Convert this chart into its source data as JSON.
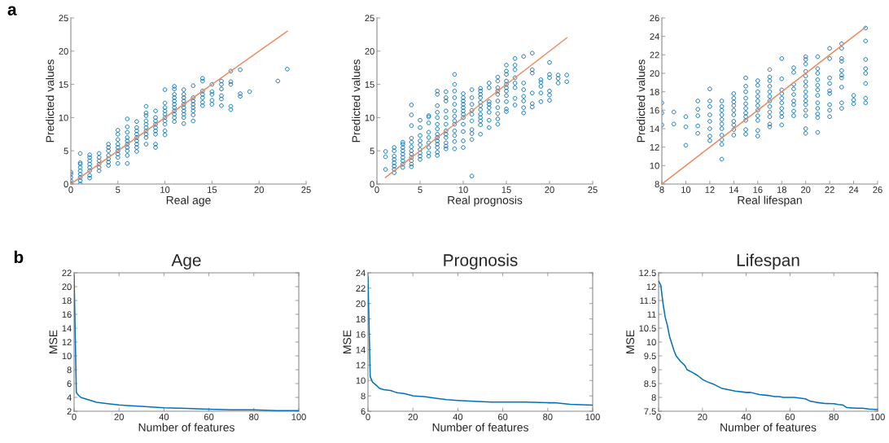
{
  "chart_data": [
    {
      "type": "scatter",
      "annotations": [
        "a"
      ],
      "xlabel": "Real age",
      "ylabel": "Predicted values",
      "xlim": [
        0,
        25
      ],
      "ylim": [
        0,
        25
      ],
      "xticks": [
        0,
        5,
        10,
        15,
        20,
        25
      ],
      "yticks": [
        0,
        5,
        10,
        15,
        20,
        25
      ],
      "series": [
        {
          "type": "scatter",
          "marker": "circle",
          "color": "#0072bd",
          "x": [
            0,
            0,
            0,
            0,
            0,
            1,
            1,
            1,
            1,
            1,
            1,
            1,
            1,
            1,
            2,
            2,
            2,
            2,
            2,
            2,
            2,
            2,
            3,
            3,
            3,
            3,
            3,
            3,
            4,
            4,
            4,
            4,
            4,
            4,
            4,
            5,
            5,
            5,
            5,
            5,
            5,
            5,
            5,
            5,
            6,
            6,
            6,
            6,
            6,
            6,
            6,
            6,
            6,
            6,
            7,
            7,
            7,
            7,
            7,
            7,
            7,
            7,
            7,
            8,
            8,
            8,
            8,
            8,
            8,
            8,
            8,
            8,
            8,
            9,
            9,
            9,
            9,
            9,
            9,
            9,
            9,
            9,
            10,
            10,
            10,
            10,
            10,
            10,
            10,
            10,
            10,
            10,
            11,
            11,
            11,
            11,
            11,
            11,
            11,
            11,
            11,
            11,
            11,
            12,
            12,
            12,
            12,
            12,
            12,
            12,
            12,
            12,
            12,
            13,
            13,
            13,
            13,
            13,
            13,
            13,
            13,
            14,
            14,
            14,
            14,
            14,
            14,
            14,
            15,
            15,
            15,
            15,
            15,
            16,
            16,
            16,
            16,
            16,
            16,
            17,
            17,
            17,
            17,
            17,
            18,
            18,
            18,
            19,
            22,
            23
          ],
          "values": [
            0,
            0.5,
            1,
            1.5,
            1.8,
            0,
            0.5,
            1,
            1.5,
            2,
            2.5,
            3,
            3.2,
            4.6,
            0.9,
            1.3,
            2,
            2.5,
            3,
            3.5,
            4,
            4.4,
            2,
            2.5,
            3,
            3.5,
            4,
            4.6,
            2.8,
            3.3,
            3.8,
            4.3,
            5,
            5.5,
            6,
            3.1,
            4,
            4.5,
            5,
            5.5,
            6,
            6.7,
            7.5,
            8.1,
            3.1,
            4.3,
            5,
            5.5,
            6,
            6.5,
            7,
            7.8,
            8.6,
            9.8,
            4.9,
            5.5,
            6,
            6.5,
            7,
            7.5,
            8,
            8.5,
            9.4,
            6,
            7,
            7.5,
            8,
            8.5,
            9,
            9.5,
            10.3,
            10.7,
            11.7,
            5.5,
            6,
            7.5,
            8,
            8.5,
            9,
            9.5,
            10,
            11,
            7.4,
            8,
            9,
            9.5,
            10,
            10.5,
            11,
            11.5,
            12.2,
            14.2,
            9.4,
            10,
            10.5,
            11,
            11.5,
            12,
            12.5,
            13,
            13.5,
            14.3,
            14.7,
            9.1,
            10,
            10.5,
            11,
            11.5,
            12,
            12.5,
            13,
            13.5,
            14.2,
            9.5,
            10.4,
            11,
            11.5,
            12,
            12.5,
            13,
            14.8,
            11.8,
            12.3,
            13,
            13.5,
            14,
            15.5,
            15.9,
            12,
            12.6,
            13.5,
            13.9,
            15,
            11.8,
            12.8,
            13.3,
            14.3,
            15,
            15.5,
            11.2,
            11.7,
            15,
            15.4,
            17,
            13.2,
            13.6,
            17.2,
            13.9,
            15.5,
            17.3
          ]
        },
        {
          "type": "line",
          "color": "#ec8a62",
          "x": [
            0,
            23
          ],
          "values": [
            0,
            23
          ]
        }
      ]
    },
    {
      "type": "scatter",
      "xlabel": "Real prognosis",
      "ylabel": "Predicted values",
      "xlim": [
        0,
        25
      ],
      "ylim": [
        0,
        25
      ],
      "xticks": [
        0,
        5,
        10,
        15,
        20,
        25
      ],
      "yticks": [
        0,
        5,
        10,
        15,
        20,
        25
      ],
      "series": [
        {
          "type": "scatter",
          "marker": "circle",
          "color": "#0072bd",
          "x": [
            1,
            1,
            1,
            2,
            2,
            2,
            2,
            2,
            2,
            2,
            2,
            3,
            3,
            3,
            3,
            3,
            3,
            3,
            3,
            3,
            4,
            4,
            4,
            4,
            4,
            4,
            4,
            4,
            4,
            4,
            4,
            4,
            5,
            5,
            5,
            5,
            5,
            5,
            5,
            5,
            5,
            6,
            6,
            6,
            6,
            6,
            6,
            6,
            6,
            6,
            7,
            7,
            7,
            7,
            7,
            7,
            7,
            7,
            7,
            7,
            7,
            7,
            7,
            7,
            8,
            8,
            8,
            8,
            8,
            8,
            8,
            8,
            8,
            8,
            8,
            8,
            9,
            9,
            9,
            9,
            9,
            9,
            9,
            9,
            9,
            9,
            9,
            9,
            9,
            10,
            10,
            10,
            10,
            10,
            10,
            10,
            10,
            10,
            10,
            10,
            10,
            11,
            11,
            11,
            11,
            11,
            11,
            11,
            11,
            11,
            11,
            12,
            12,
            12,
            12,
            12,
            12,
            12,
            12,
            12,
            12,
            12,
            12,
            13,
            13,
            13,
            13,
            13,
            13,
            13,
            13,
            14,
            14,
            14,
            14,
            14,
            14,
            14,
            14,
            14,
            14,
            15,
            15,
            15,
            15,
            15,
            15,
            15,
            15,
            15,
            15,
            15,
            16,
            16,
            16,
            16,
            16,
            16,
            16,
            16,
            17,
            17,
            17,
            17,
            17,
            17,
            17,
            18,
            18,
            18,
            18,
            18,
            18,
            19,
            19,
            19,
            19,
            19,
            20,
            20,
            20,
            20,
            20,
            20,
            21,
            21,
            21,
            22,
            22
          ],
          "values": [
            2.2,
            4.1,
            4.9,
            1.7,
            2.2,
            2.7,
            3.2,
            3.7,
            4.2,
            5,
            5.5,
            2.5,
            3,
            3.5,
            4,
            4.5,
            5,
            5.5,
            6,
            6.3,
            2.6,
            3,
            3.5,
            4,
            4.5,
            5,
            5.6,
            6.3,
            6.9,
            8.8,
            10.4,
            11.9,
            3.7,
            4.2,
            4.7,
            5.2,
            5.9,
            6.5,
            7.3,
            8.5,
            9.6,
            4.2,
            4.7,
            5.5,
            6.2,
            7,
            7.8,
            9.2,
            10.1,
            10.3,
            4.3,
            4.8,
            5.5,
            6,
            6.5,
            7,
            7.5,
            8.3,
            9,
            10,
            10.8,
            11.8,
            13.5,
            14,
            5.3,
            5.7,
            6.2,
            7,
            7.5,
            8,
            9,
            10,
            11,
            12.5,
            13,
            13.9,
            5.3,
            6.4,
            7.3,
            8,
            9,
            9.5,
            10.2,
            11,
            12,
            13,
            14,
            15,
            16.5,
            5.5,
            6.5,
            7.9,
            9,
            10,
            10.5,
            11,
            11.5,
            12,
            12.5,
            13,
            13.6,
            1.2,
            6.7,
            7.6,
            8.2,
            9.5,
            10.5,
            11.1,
            12,
            13,
            14.2,
            7.5,
            8.9,
            9.5,
            10,
            10.5,
            11.2,
            11.8,
            12.3,
            13,
            13.5,
            14,
            14.4,
            8.5,
            9.6,
            10.8,
            11.5,
            12,
            12.4,
            14.5,
            15.2,
            9,
            9.8,
            10.6,
            11.5,
            12.5,
            13.5,
            14,
            14.5,
            15.5,
            16.1,
            10.9,
            11.3,
            12.4,
            13.3,
            14,
            14.5,
            15,
            15.5,
            16.5,
            17,
            17.9,
            11.9,
            12.9,
            14.5,
            15.2,
            16,
            17.2,
            17.9,
            18.9,
            10.7,
            11.5,
            12.5,
            13.2,
            14.2,
            15.2,
            19.2,
            11.6,
            12.1,
            13.7,
            16.7,
            17.2,
            19.7,
            12.4,
            13.7,
            14.7,
            15.3,
            15.7,
            12.6,
            13.4,
            14,
            16,
            16.5,
            18.3,
            15.2,
            15.9,
            16.4,
            15.4,
            16.4
          ]
        },
        {
          "type": "line",
          "color": "#ec8a62",
          "x": [
            1,
            22
          ],
          "values": [
            1,
            22
          ]
        }
      ]
    },
    {
      "type": "scatter",
      "xlabel": "Real lifespan",
      "ylabel": "Predicted values",
      "xlim": [
        8,
        26
      ],
      "ylim": [
        8,
        26
      ],
      "xticks": [
        8,
        10,
        12,
        14,
        16,
        18,
        20,
        22,
        24,
        26
      ],
      "yticks": [
        8,
        10,
        12,
        14,
        16,
        18,
        20,
        22,
        24,
        26
      ],
      "series": [
        {
          "type": "scatter",
          "marker": "circle",
          "color": "#0072bd",
          "x": [
            8,
            8,
            8,
            9,
            9,
            10,
            10,
            10,
            11,
            11,
            11,
            11,
            11,
            12,
            12,
            12,
            12,
            12,
            12,
            12,
            12,
            13,
            13,
            13,
            13,
            13,
            13,
            13,
            13,
            13,
            13,
            13,
            14,
            14,
            14,
            14,
            14,
            14,
            14,
            14,
            14,
            14,
            15,
            15,
            15,
            15,
            15,
            15,
            15,
            15,
            15,
            15,
            15,
            16,
            16,
            16,
            16,
            16,
            16,
            16,
            16,
            16,
            16,
            16,
            17,
            17,
            17,
            17,
            17,
            17,
            17,
            17,
            17,
            17,
            17,
            17,
            18,
            18,
            18,
            18,
            18,
            18,
            18,
            18,
            18,
            18,
            19,
            19,
            19,
            19,
            19,
            19,
            19,
            19,
            19,
            20,
            20,
            20,
            20,
            20,
            20,
            20,
            20,
            20,
            20,
            20,
            20,
            20,
            20,
            20,
            21,
            21,
            21,
            21,
            21,
            21,
            21,
            21,
            21,
            21,
            21,
            21,
            22,
            22,
            22,
            22,
            22,
            22,
            22,
            22,
            22,
            23,
            23,
            23,
            23,
            23,
            23,
            23,
            23,
            23,
            23,
            24,
            24,
            24,
            25,
            25,
            25,
            25,
            25,
            25,
            25,
            25
          ],
          "values": [
            14.4,
            15.7,
            16.8,
            14.5,
            15.8,
            12.2,
            14.2,
            15.3,
            13.5,
            14.3,
            15.4,
            16.1,
            17,
            12.7,
            13.2,
            14,
            14.8,
            15.5,
            16.4,
            17,
            18.3,
            10.7,
            12.3,
            12.8,
            13.3,
            14,
            14.5,
            15,
            15.5,
            16,
            16.4,
            17,
            13.3,
            13.9,
            14.4,
            14.8,
            15.5,
            16,
            16.5,
            16.9,
            17.3,
            17.8,
            13.4,
            13.9,
            14.9,
            15.3,
            15.7,
            16.2,
            16.7,
            17.3,
            18,
            18.6,
            19.5,
            13.2,
            13.8,
            14.9,
            15.4,
            16,
            16.5,
            17,
            17.5,
            18,
            18.7,
            19.2,
            14.2,
            14.5,
            15.3,
            15.8,
            16.4,
            17,
            17.5,
            18,
            18.6,
            19.2,
            19.6,
            20.4,
            14.4,
            15.3,
            15.7,
            16.2,
            16.8,
            17.3,
            17.8,
            18.2,
            19.4,
            21.6,
            15.4,
            15.9,
            16.6,
            17,
            17.7,
            18.3,
            18.8,
            20.1,
            20.6,
            13.5,
            14,
            15.4,
            16,
            16.6,
            17,
            17.5,
            18,
            18.6,
            19.1,
            19.7,
            20.2,
            21,
            21.5,
            21.8,
            13.6,
            15.2,
            15.6,
            16.2,
            16.8,
            17.6,
            18.2,
            18.7,
            19.3,
            20,
            20.5,
            21.8,
            15.3,
            16,
            16.6,
            17.8,
            18.1,
            18.9,
            19.5,
            21.6,
            22.7,
            16.2,
            16.8,
            18.5,
            19.5,
            19.8,
            20.3,
            21.3,
            21.6,
            22.7,
            23.2,
            16.7,
            17.1,
            17.6,
            16.8,
            17.3,
            18.9,
            20,
            20.5,
            21.5,
            23.5,
            24.9
          ]
        },
        {
          "type": "line",
          "color": "#ec8a62",
          "x": [
            8,
            25
          ],
          "values": [
            8,
            25
          ]
        }
      ]
    },
    {
      "type": "line",
      "title": "Age",
      "annotations": [
        "b"
      ],
      "xlabel": "Number of features",
      "ylabel": "MSE",
      "xlim": [
        0,
        100
      ],
      "ylim": [
        2,
        22
      ],
      "xticks": [
        0,
        20,
        40,
        60,
        80,
        100
      ],
      "yticks": [
        2,
        4,
        6,
        8,
        10,
        12,
        14,
        16,
        18,
        20,
        22
      ],
      "series": [
        {
          "color": "#0072bd",
          "x": [
            0,
            1,
            2,
            3,
            5,
            8,
            10,
            15,
            20,
            25,
            30,
            40,
            50,
            60,
            70,
            80,
            90,
            100
          ],
          "values": [
            21.6,
            4.7,
            4.3,
            4.0,
            3.8,
            3.5,
            3.3,
            3.1,
            2.9,
            2.8,
            2.7,
            2.5,
            2.4,
            2.3,
            2.2,
            2.2,
            2.1,
            2.1
          ]
        }
      ]
    },
    {
      "type": "line",
      "title": "Prognosis",
      "xlabel": "Number of features",
      "ylabel": "MSE",
      "xlim": [
        0,
        100
      ],
      "ylim": [
        6,
        24
      ],
      "xticks": [
        0,
        20,
        40,
        60,
        80,
        100
      ],
      "yticks": [
        6,
        8,
        10,
        12,
        14,
        16,
        18,
        20,
        22,
        24
      ],
      "series": [
        {
          "color": "#0072bd",
          "x": [
            0,
            1,
            2,
            4,
            5,
            7,
            10,
            12,
            13,
            16,
            20,
            25,
            30,
            35,
            40,
            47,
            55,
            60,
            70,
            80,
            83,
            90,
            100
          ],
          "values": [
            23.5,
            10.5,
            9.8,
            9.3,
            9.0,
            8.8,
            8.7,
            8.5,
            8.4,
            8.3,
            8.0,
            7.9,
            7.7,
            7.5,
            7.4,
            7.3,
            7.2,
            7.2,
            7.2,
            7.1,
            7.1,
            6.9,
            6.8
          ]
        }
      ]
    },
    {
      "type": "line",
      "title": "Lifespan",
      "xlabel": "Number of features",
      "ylabel": "MSE",
      "xlim": [
        0,
        100
      ],
      "ylim": [
        7.5,
        12.5
      ],
      "xticks": [
        0,
        20,
        40,
        60,
        80,
        100
      ],
      "yticks": [
        7.5,
        8,
        8.5,
        9,
        9.5,
        10,
        10.5,
        11,
        11.5,
        12,
        12.5
      ],
      "series": [
        {
          "color": "#0072bd",
          "x": [
            0,
            1,
            2,
            3,
            4,
            5,
            7,
            8,
            10,
            12,
            13,
            16,
            18,
            20,
            22,
            25,
            29,
            35,
            40,
            42,
            46,
            50,
            53,
            55,
            57,
            62,
            67,
            69,
            72,
            76,
            80,
            82,
            84,
            86,
            90,
            93,
            96,
            100
          ],
          "values": [
            12.2,
            12.05,
            11.4,
            10.9,
            10.6,
            10.2,
            9.7,
            9.5,
            9.3,
            9.15,
            9.0,
            8.88,
            8.78,
            8.65,
            8.57,
            8.48,
            8.32,
            8.23,
            8.18,
            8.18,
            8.1,
            8.07,
            8.03,
            8.03,
            8.0,
            8.0,
            7.95,
            7.87,
            7.82,
            7.78,
            7.77,
            7.74,
            7.73,
            7.63,
            7.61,
            7.61,
            7.58,
            7.56
          ]
        }
      ]
    }
  ]
}
